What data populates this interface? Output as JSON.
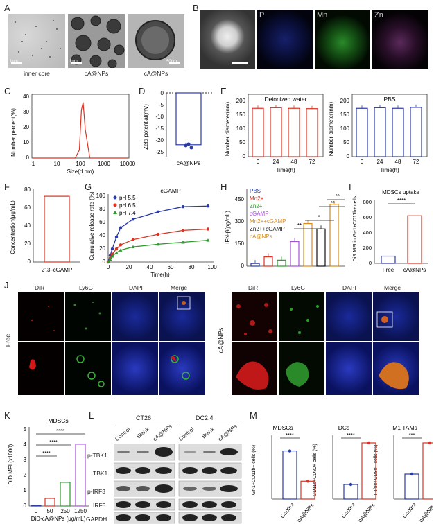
{
  "panels": [
    "A",
    "B",
    "C",
    "D",
    "E",
    "F",
    "G",
    "H",
    "I",
    "J",
    "K",
    "L",
    "M"
  ],
  "A": {
    "captions": [
      "inner core",
      "cA@NPs",
      "cA@NPs"
    ],
    "scales": [
      "1μm",
      "1μm",
      "50nm"
    ]
  },
  "B": {
    "labels": [
      "P",
      "Mn",
      "Zn"
    ]
  },
  "C": {
    "xlabel": "Size(d.nm)",
    "ylabel": "Number percent(%)",
    "xticks": [
      "1",
      "10",
      "100",
      "1000",
      "10000"
    ],
    "yticks": [
      "0",
      "10",
      "20",
      "30",
      "40"
    ]
  },
  "D": {
    "ylabel": "Zeta potential(mV)",
    "xticks": [
      "cA@NPs"
    ],
    "yticks": [
      "0",
      "-5",
      "-10",
      "-15",
      "-20",
      "-25"
    ]
  },
  "E": {
    "title1": "Deionized water",
    "title2": "PBS",
    "ylabel": "Number diameter(nm)",
    "xlabel": "Time(h)",
    "xticks": [
      "0",
      "24",
      "48",
      "72"
    ],
    "yticks": [
      "0",
      "50",
      "100",
      "150",
      "200"
    ]
  },
  "F": {
    "ylabel": "Concentration(μg/mL)",
    "xticks": [
      "2',3'-cGAMP"
    ],
    "yticks": [
      "0",
      "20",
      "40",
      "60",
      "80"
    ]
  },
  "G": {
    "title": "cGAMP",
    "ylabel": "Cumulative release rate (%)",
    "xlabel": "Time(h)",
    "legend": [
      "pH 5.5",
      "pH 6.5",
      "pH 7.4"
    ],
    "xticks": [
      "0",
      "20",
      "40",
      "60",
      "80",
      "100"
    ],
    "yticks": [
      "0",
      "20",
      "40",
      "60",
      "80",
      "100"
    ]
  },
  "H": {
    "ylabel": "IFN-β(pg/mL)",
    "legend": [
      "PBS",
      "Mn2+",
      "Zn2+",
      "cGAMP",
      "Mn2++cGAMP",
      "Zn2++cGAMP",
      "cA@NPs"
    ],
    "yticks": [
      "0",
      "150",
      "300",
      "450"
    ],
    "stars": [
      "**",
      "*",
      "**",
      "**"
    ]
  },
  "I": {
    "title": "MDSCs uptake",
    "ylabel": "DiR MFI in Gr-1+CD11b+ cells",
    "xticks": [
      "Free",
      "cA@NPs"
    ],
    "yticks": [
      "0",
      "200",
      "400",
      "600",
      "800"
    ],
    "stars": "****"
  },
  "J": {
    "columns": [
      "DiR",
      "Ly6G",
      "DAPI",
      "Merge"
    ],
    "rows": [
      "Free",
      "cA@NPs"
    ]
  },
  "K": {
    "title": "MDSCs",
    "ylabel": "DiD MFI (x1000)",
    "xlabel": "DiD-cA@NPs (μg/mL)",
    "xticks": [
      "0",
      "50",
      "250",
      "1250"
    ],
    "yticks": [
      "0",
      "1",
      "2",
      "3",
      "4",
      "5"
    ],
    "stars": [
      "****",
      "****",
      "****"
    ]
  },
  "L": {
    "groups": [
      "CT26",
      "DC2.4"
    ],
    "lanes": [
      "Control",
      "Blank",
      "cA@NPs"
    ],
    "bands": [
      "p-TBK1",
      "TBK1",
      "p-IRF3",
      "IRF3",
      "GAPDH"
    ]
  },
  "M": {
    "titles": [
      "MDSCs",
      "DCs",
      "M1 TAMs"
    ],
    "ylabels": [
      "Gr-1+CD11b+ cells (%)",
      "CD11c+CD80+ cells (%)",
      "F4/80+CD80+ cells (%)"
    ],
    "xticks": [
      "Control",
      "cA@NPs"
    ],
    "stars": [
      "****",
      "****",
      "***"
    ]
  },
  "chart_data": [
    {
      "type": "line",
      "panel": "C",
      "x": [
        1,
        10,
        60,
        90,
        110,
        130,
        160,
        250,
        1000,
        10000
      ],
      "values": [
        0,
        0,
        0,
        5,
        30,
        35,
        18,
        0,
        0,
        0
      ],
      "xlabel": "Size(d.nm)",
      "ylabel": "Number percent(%)",
      "ylim": [
        0,
        40
      ]
    },
    {
      "type": "bar",
      "panel": "D",
      "categories": [
        "cA@NPs"
      ],
      "values": [
        -22
      ],
      "ylim": [
        -25,
        0
      ]
    },
    {
      "type": "bar",
      "panel": "E1",
      "categories": [
        "0",
        "24",
        "48",
        "72"
      ],
      "values": [
        155,
        157,
        155,
        154
      ],
      "ylim": [
        0,
        200
      ]
    },
    {
      "type": "bar",
      "panel": "E2",
      "categories": [
        "0",
        "24",
        "48",
        "72"
      ],
      "values": [
        155,
        157,
        155,
        158
      ],
      "ylim": [
        0,
        200
      ]
    },
    {
      "type": "bar",
      "panel": "F",
      "categories": [
        "2',3'-cGAMP"
      ],
      "values": [
        73
      ],
      "ylim": [
        0,
        80
      ]
    },
    {
      "type": "line",
      "panel": "G",
      "x": [
        0,
        2,
        4,
        8,
        12,
        24,
        48,
        72,
        96
      ],
      "series": [
        {
          "name": "pH 5.5",
          "values": [
            0,
            10,
            20,
            38,
            52,
            65,
            76,
            84,
            85
          ]
        },
        {
          "name": "pH 6.5",
          "values": [
            0,
            6,
            12,
            20,
            26,
            34,
            42,
            48,
            50
          ]
        },
        {
          "name": "pH 7.4",
          "values": [
            0,
            4,
            9,
            14,
            18,
            23,
            27,
            30,
            33
          ]
        }
      ],
      "ylim": [
        0,
        100
      ],
      "xlim": [
        0,
        100
      ]
    },
    {
      "type": "bar",
      "panel": "H",
      "categories": [
        "PBS",
        "Mn2+",
        "Zn2+",
        "cGAMP",
        "Mn2++cGAMP",
        "Zn2++cGAMP",
        "cA@NPs"
      ],
      "values": [
        20,
        70,
        45,
        185,
        320,
        280,
        465
      ],
      "ylim": [
        0,
        500
      ]
    },
    {
      "type": "bar",
      "panel": "I",
      "categories": [
        "Free",
        "cA@NPs"
      ],
      "values": [
        95,
        625
      ],
      "ylim": [
        0,
        800
      ]
    },
    {
      "type": "bar",
      "panel": "K",
      "categories": [
        "0",
        "50",
        "250",
        "1250"
      ],
      "values": [
        0.05,
        0.5,
        1.55,
        4.05
      ],
      "ylim": [
        0,
        5
      ]
    },
    {
      "type": "bar",
      "panel": "M1",
      "categories": [
        "Control",
        "cA@NPs"
      ],
      "values": [
        87,
        70
      ],
      "ylim": [
        60,
        95
      ]
    },
    {
      "type": "bar",
      "panel": "M2",
      "categories": [
        "Control",
        "cA@NPs"
      ],
      "values": [
        6.4,
        10.4
      ],
      "ylim": [
        5,
        11
      ]
    },
    {
      "type": "bar",
      "panel": "M3",
      "categories": [
        "Control",
        "cA@NPs"
      ],
      "values": [
        16,
        23.5
      ],
      "ylim": [
        10,
        25
      ]
    }
  ]
}
